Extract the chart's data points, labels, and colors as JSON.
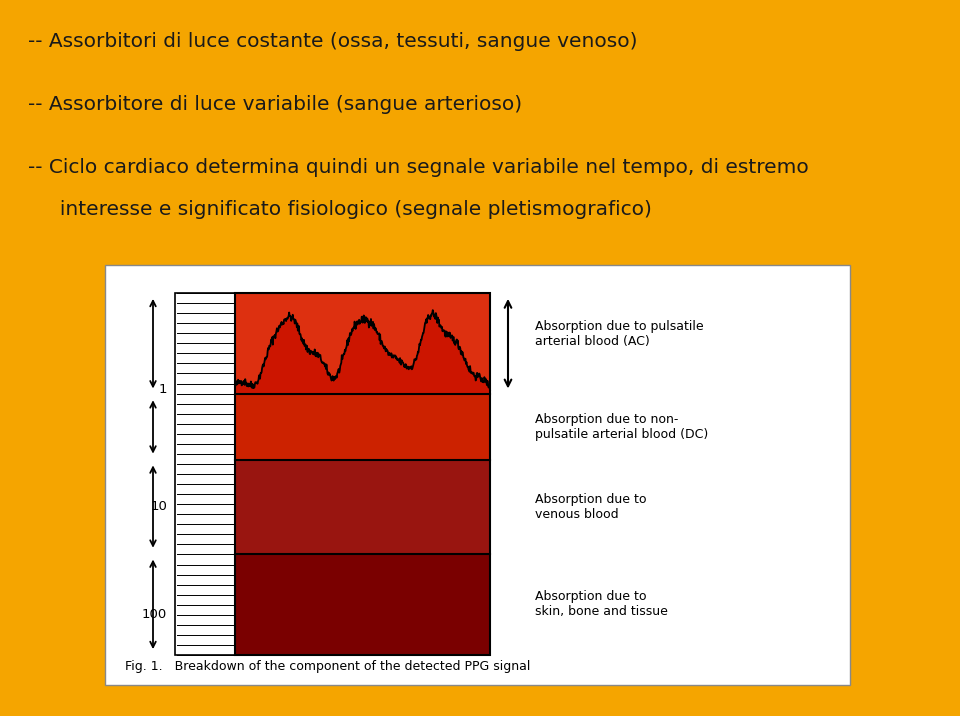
{
  "background_color": "#F5A500",
  "fig_width": 9.6,
  "fig_height": 7.16,
  "line1": "-- Assorbitori di luce costante (ossa, tessuti, sangue venoso)",
  "line2": "-- Assorbitore di luce variabile (sangue arterioso)",
  "line3": "-- Ciclo cardiaco determina quindi un segnale variabile nel tempo, di estremo",
  "line4": "     interesse e significato fisiologico (segnale pletismografico)",
  "text_color": "#1a1a1a",
  "text_fontsize": 14.5,
  "fig_caption": "Fig. 1.   Breakdown of the component of the detected PPG signal",
  "anno_ac": "Absorption due to pulsatile\narterial blood (AC)",
  "anno_dc": "Absorption due to non-\npulsatile arterial blood (DC)",
  "anno_venous": "Absorption due to\nvenous blood",
  "anno_skin": "Absorption due to\nskin, bone and tissue",
  "label_1": "1",
  "label_10": "10",
  "label_100": "100",
  "color_skin": "#7A0000",
  "color_venous": "#991510",
  "color_dc": "#CC2200",
  "color_ac_base": "#DD3010",
  "color_ac_peak": "#CC1500"
}
